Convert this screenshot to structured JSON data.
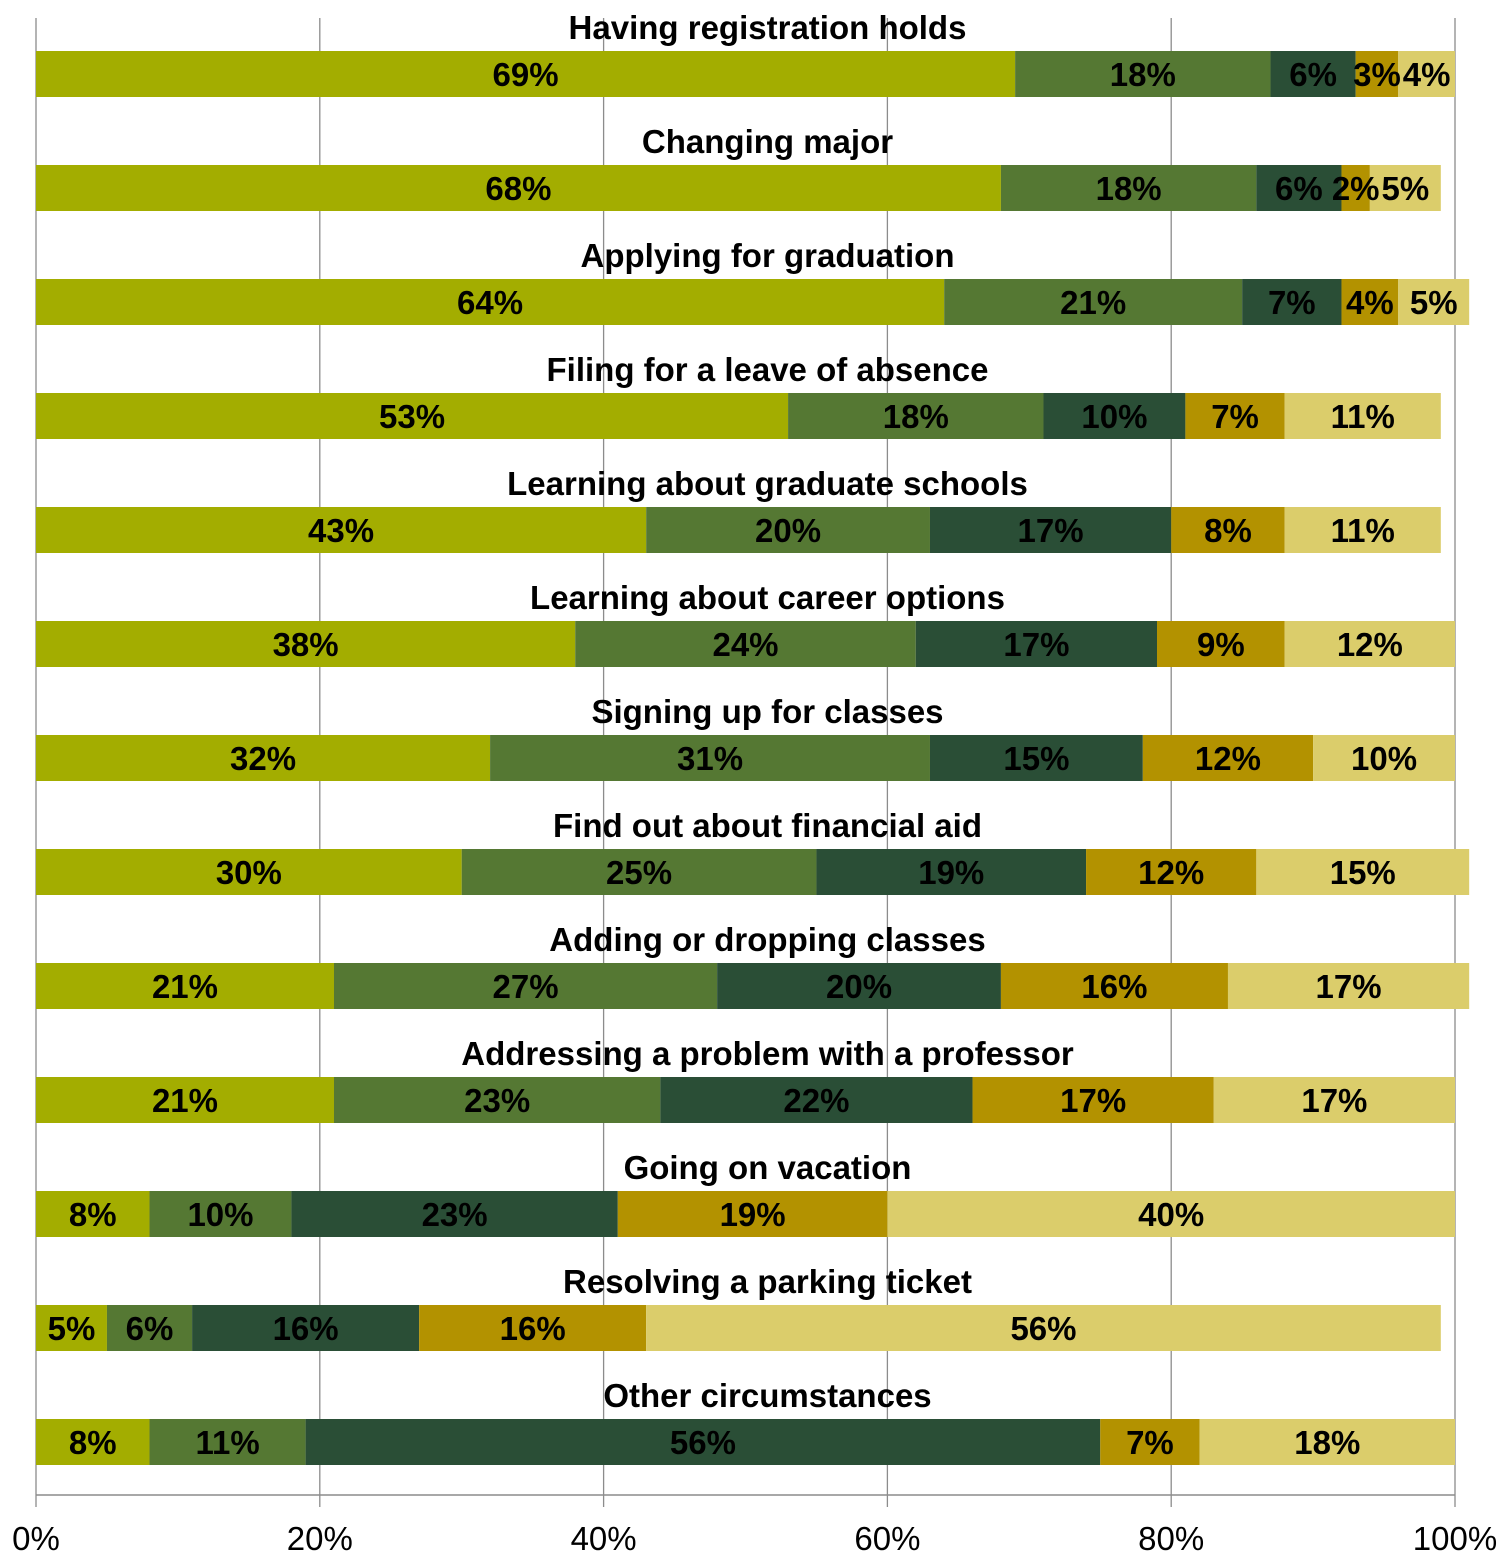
{
  "chart_data": {
    "type": "bar",
    "orientation": "horizontal-stacked-100",
    "title": "",
    "xlabel": "",
    "ylabel": "",
    "xlim": [
      0,
      100
    ],
    "grid": true,
    "legend": "none",
    "x_ticks": [
      "0%",
      "20%",
      "40%",
      "60%",
      "80%",
      "100%"
    ],
    "x_tick_values": [
      0,
      20,
      40,
      60,
      80,
      100
    ],
    "colors": [
      "#a3ad00",
      "#557833",
      "#2a4e36",
      "#b39200",
      "#dbcd6b"
    ],
    "categories": [
      "Having registration holds",
      "Changing major",
      "Applying for graduation",
      "Filing for a leave of absence",
      "Learning about graduate schools",
      "Learning about career options",
      "Signing up for classes",
      "Find out about financial aid",
      "Adding or dropping classes",
      "Addressing a problem with a professor",
      "Going on vacation",
      "Resolving a parking ticket",
      "Other circumstances"
    ],
    "values": [
      [
        69,
        18,
        6,
        3,
        4
      ],
      [
        68,
        18,
        6,
        2,
        5
      ],
      [
        64,
        21,
        7,
        4,
        5
      ],
      [
        53,
        18,
        10,
        7,
        11
      ],
      [
        43,
        20,
        17,
        8,
        11
      ],
      [
        38,
        24,
        17,
        9,
        12
      ],
      [
        32,
        31,
        15,
        12,
        10
      ],
      [
        30,
        25,
        19,
        12,
        15
      ],
      [
        21,
        27,
        20,
        16,
        17
      ],
      [
        21,
        23,
        22,
        17,
        17
      ],
      [
        8,
        10,
        23,
        19,
        40
      ],
      [
        5,
        6,
        16,
        16,
        56
      ],
      [
        8,
        11,
        56,
        7,
        18
      ]
    ]
  }
}
